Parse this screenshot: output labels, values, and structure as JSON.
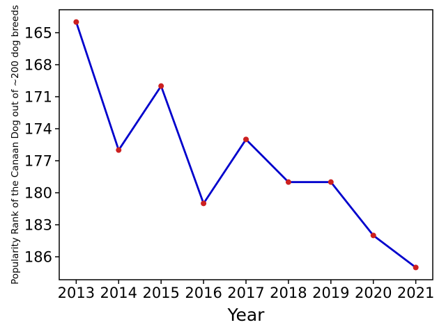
{
  "figure": {
    "background": "#ffffff",
    "spine_color": "#000000"
  },
  "chart_data": {
    "type": "line",
    "title": "",
    "xlabel": "Year",
    "ylabel": "Popularity Rank of the Canaan Dog out of ~200 dog breeds",
    "x": [
      2013,
      2014,
      2015,
      2016,
      2017,
      2018,
      2019,
      2020,
      2021
    ],
    "series": [
      {
        "name": "canaan-dog-popularity-rank",
        "values": [
          164,
          176,
          170,
          181,
          175,
          179,
          179,
          184,
          187
        ]
      }
    ],
    "xticks": [
      2013,
      2014,
      2015,
      2016,
      2017,
      2018,
      2019,
      2020,
      2021
    ],
    "yticks": [
      165,
      168,
      171,
      174,
      177,
      180,
      183,
      186
    ],
    "xlim": [
      2012.6,
      2021.4
    ],
    "ylim": [
      162.85,
      188.15
    ],
    "y_axis_inverted": true,
    "grid": false,
    "legend": false,
    "line_color": "#0000cc",
    "marker_color": "#cc2020",
    "marker": "o"
  }
}
